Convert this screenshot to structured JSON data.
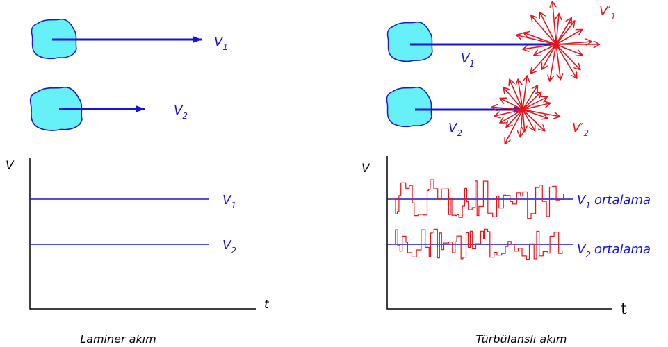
{
  "laminar": {
    "caption": "Laminer akım",
    "arrow_labels": [
      {
        "symbol": "V",
        "sub": "1"
      },
      {
        "symbol": "V",
        "sub": "2"
      }
    ],
    "graph": {
      "y_label": "V",
      "x_label": "t",
      "line_labels": [
        {
          "symbol": "V",
          "sub": "1"
        },
        {
          "symbol": "V",
          "sub": "2"
        }
      ]
    }
  },
  "turbulent": {
    "caption": "Türbülanslı akım",
    "arrow_labels": [
      {
        "symbol": "V",
        "sub": "1"
      },
      {
        "symbol": "V",
        "sub": "2"
      }
    ],
    "fluctuation_labels": [
      {
        "symbol": "V′",
        "sub": "1"
      },
      {
        "symbol": "V′",
        "sub": "2"
      }
    ],
    "graph": {
      "y_label": "V",
      "x_label": "t",
      "line_labels": [
        {
          "symbol": "V",
          "sub": "1",
          "suffix": "ortalama"
        },
        {
          "symbol": "V",
          "sub": "2",
          "suffix": "ortalama"
        }
      ]
    }
  }
}
